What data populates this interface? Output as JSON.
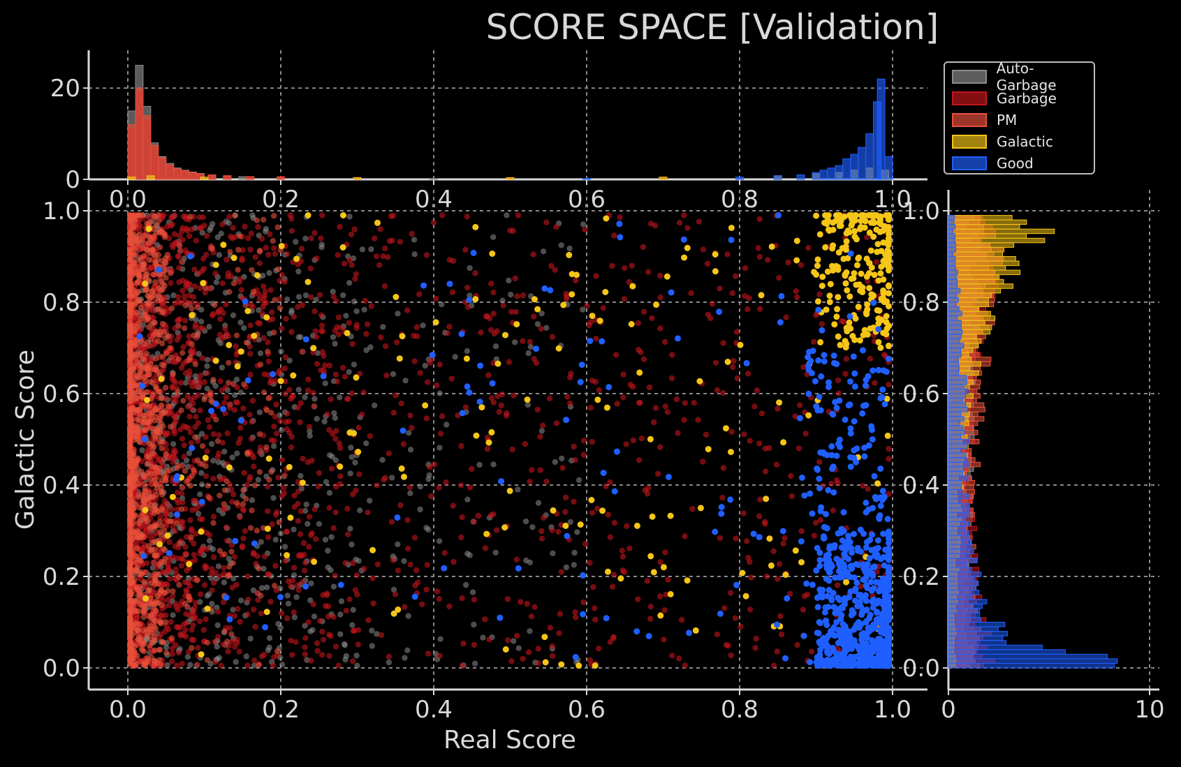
{
  "title": "SCORE SPACE [Validation]",
  "colors": {
    "background": "#000000",
    "axis": "#d9d9d9",
    "grid": "#8a8a8a",
    "Auto-Garbage": "#8c8c8c",
    "Garbage": "#c4161c",
    "PM": "#e8503a",
    "Galactic": "#f5c518",
    "Good": "#1f5fff"
  },
  "legend": {
    "placement": "top-right, beside top histogram",
    "items": [
      {
        "label": "Auto-Garbage",
        "color_key": "Auto-Garbage"
      },
      {
        "label": "Garbage",
        "color_key": "Garbage"
      },
      {
        "label": "PM",
        "color_key": "PM"
      },
      {
        "label": "Galactic",
        "color_key": "Galactic"
      },
      {
        "label": "Good",
        "color_key": "Good"
      }
    ]
  },
  "chart_data": [
    {
      "type": "scatter",
      "name": "main",
      "xlabel": "Real Score",
      "ylabel": "Galactic Score",
      "xlim": [
        0,
        1
      ],
      "ylim": [
        0,
        1
      ],
      "xticks": [
        "0.0",
        "0.2",
        "0.4",
        "0.6",
        "0.8",
        "1.0"
      ],
      "yticks": [
        "0.0",
        "0.2",
        "0.4",
        "0.6",
        "0.8",
        "1.0"
      ],
      "grid": true,
      "series": [
        {
          "name": "Auto-Garbage",
          "color_key": "Auto-Garbage",
          "clusters": [
            {
              "x": [
                0.0,
                0.3
              ],
              "y": [
                0.0,
                1.0
              ],
              "n": 420
            },
            {
              "x": [
                0.0,
                0.6
              ],
              "y": [
                0.0,
                1.0
              ],
              "n": 260
            }
          ]
        },
        {
          "name": "Garbage",
          "color_key": "Garbage",
          "clusters": [
            {
              "x": [
                0.0,
                0.1
              ],
              "y": [
                0.0,
                1.0
              ],
              "n": 700
            },
            {
              "x": [
                0.0,
                0.3
              ],
              "y": [
                0.0,
                1.0
              ],
              "n": 650
            },
            {
              "x": [
                0.0,
                1.0
              ],
              "y": [
                0.0,
                1.0
              ],
              "n": 900
            }
          ]
        },
        {
          "name": "PM",
          "color_key": "PM",
          "clusters": [
            {
              "x": [
                0.0,
                0.05
              ],
              "y": [
                0.0,
                1.0
              ],
              "n": 900
            },
            {
              "x": [
                0.0,
                0.2
              ],
              "y": [
                0.0,
                1.0
              ],
              "n": 300
            }
          ]
        },
        {
          "name": "Galactic",
          "color_key": "Galactic",
          "clusters": [
            {
              "x": [
                0.9,
                1.0
              ],
              "y": [
                0.7,
                1.0
              ],
              "n": 220
            },
            {
              "x": [
                0.0,
                1.0
              ],
              "y": [
                0.0,
                1.0
              ],
              "n": 170
            }
          ]
        },
        {
          "name": "Good",
          "color_key": "Good",
          "clusters": [
            {
              "x": [
                0.9,
                1.0
              ],
              "y": [
                0.0,
                0.3
              ],
              "n": 500
            },
            {
              "x": [
                0.88,
                1.0
              ],
              "y": [
                0.0,
                0.7
              ],
              "n": 180
            },
            {
              "x": [
                0.0,
                1.0
              ],
              "y": [
                0.0,
                1.0
              ],
              "n": 110
            }
          ]
        }
      ]
    },
    {
      "type": "histogram",
      "name": "top-marginal",
      "orientation": "vertical",
      "xlim": [
        0,
        1
      ],
      "ylim": [
        0,
        26
      ],
      "xticks": [
        "0.0",
        "0.2",
        "0.4",
        "0.6",
        "0.8",
        "1.0"
      ],
      "yticks": [
        "0",
        "20"
      ],
      "grid": true,
      "series": [
        {
          "name": "Auto-Garbage",
          "color_key": "Auto-Garbage",
          "bins": [
            [
              0.005,
              15
            ],
            [
              0.015,
              25
            ],
            [
              0.025,
              16
            ],
            [
              0.035,
              8
            ],
            [
              0.045,
              5
            ],
            [
              0.055,
              3.5
            ],
            [
              0.065,
              2.5
            ],
            [
              0.075,
              2
            ],
            [
              0.085,
              1.6
            ],
            [
              0.095,
              1.3
            ],
            [
              0.11,
              1
            ],
            [
              0.13,
              0.8
            ],
            [
              0.15,
              0.6
            ],
            [
              0.2,
              0.5
            ],
            [
              0.3,
              0.3
            ],
            [
              0.4,
              0.2
            ]
          ]
        },
        {
          "name": "Garbage",
          "color_key": "Garbage",
          "bins": [
            [
              0.005,
              11
            ],
            [
              0.015,
              19
            ],
            [
              0.025,
              13
            ],
            [
              0.035,
              7
            ],
            [
              0.045,
              4.5
            ],
            [
              0.055,
              3
            ],
            [
              0.065,
              2.2
            ],
            [
              0.075,
              1.8
            ],
            [
              0.085,
              1.4
            ],
            [
              0.095,
              1.2
            ],
            [
              0.11,
              1
            ],
            [
              0.13,
              0.8
            ],
            [
              0.16,
              0.6
            ],
            [
              0.2,
              0.6
            ],
            [
              0.3,
              0.4
            ],
            [
              0.5,
              0.3
            ],
            [
              0.7,
              0.3
            ],
            [
              0.9,
              0.3
            ]
          ]
        },
        {
          "name": "PM",
          "color_key": "PM",
          "bins": [
            [
              0.005,
              12
            ],
            [
              0.015,
              20
            ],
            [
              0.025,
              14
            ],
            [
              0.035,
              7.5
            ],
            [
              0.045,
              4.8
            ],
            [
              0.055,
              3.2
            ],
            [
              0.065,
              2.3
            ],
            [
              0.075,
              1.9
            ],
            [
              0.085,
              1.5
            ],
            [
              0.095,
              1.2
            ],
            [
              0.11,
              1
            ],
            [
              0.13,
              0.8
            ],
            [
              0.16,
              0.6
            ],
            [
              0.2,
              0.5
            ]
          ]
        },
        {
          "name": "Galactic",
          "color_key": "Galactic",
          "bins": [
            [
              0.005,
              0.5
            ],
            [
              0.03,
              0.8
            ],
            [
              0.1,
              0.5
            ],
            [
              0.3,
              0.4
            ],
            [
              0.5,
              0.4
            ],
            [
              0.7,
              0.5
            ],
            [
              0.85,
              0.8
            ],
            [
              0.9,
              1.2
            ],
            [
              0.93,
              1.5
            ],
            [
              0.95,
              2
            ],
            [
              0.97,
              2.5
            ],
            [
              0.99,
              2
            ]
          ]
        },
        {
          "name": "Good",
          "color_key": "Good",
          "bins": [
            [
              0.6,
              0.2
            ],
            [
              0.8,
              0.5
            ],
            [
              0.85,
              0.8
            ],
            [
              0.88,
              1
            ],
            [
              0.9,
              1.5
            ],
            [
              0.91,
              2
            ],
            [
              0.92,
              2.5
            ],
            [
              0.93,
              3
            ],
            [
              0.94,
              4.5
            ],
            [
              0.95,
              5.5
            ],
            [
              0.96,
              7
            ],
            [
              0.97,
              10
            ],
            [
              0.98,
              17
            ],
            [
              0.985,
              22
            ],
            [
              0.995,
              5
            ]
          ]
        }
      ]
    },
    {
      "type": "histogram",
      "name": "right-marginal",
      "orientation": "horizontal",
      "xlim": [
        0,
        10
      ],
      "ylim": [
        0,
        1
      ],
      "xticks": [
        "0",
        "10"
      ],
      "yticks": [
        "0.0",
        "0.2",
        "0.4",
        "0.6",
        "0.8",
        "1.0"
      ],
      "grid": true,
      "series": [
        {
          "name": "Auto-Garbage",
          "color_key": "Auto-Garbage",
          "bins": [
            [
              0.02,
              1.2
            ],
            [
              0.1,
              1
            ],
            [
              0.2,
              0.9
            ],
            [
              0.3,
              0.9
            ],
            [
              0.4,
              1
            ],
            [
              0.5,
              1
            ],
            [
              0.6,
              1.1
            ],
            [
              0.7,
              1.2
            ],
            [
              0.8,
              1.3
            ],
            [
              0.9,
              1.5
            ],
            [
              0.97,
              1.2
            ]
          ]
        },
        {
          "name": "Garbage",
          "color_key": "Garbage",
          "bins": [
            [
              0.02,
              2
            ],
            [
              0.1,
              1.6
            ],
            [
              0.2,
              1.3
            ],
            [
              0.3,
              1.1
            ],
            [
              0.4,
              1
            ],
            [
              0.5,
              1
            ],
            [
              0.6,
              1
            ],
            [
              0.7,
              1.3
            ],
            [
              0.8,
              1.8
            ],
            [
              0.9,
              2.4
            ],
            [
              0.97,
              2
            ]
          ]
        },
        {
          "name": "PM",
          "color_key": "PM",
          "bins": [
            [
              0.02,
              1.5
            ],
            [
              0.1,
              1.2
            ],
            [
              0.2,
              1.1
            ],
            [
              0.3,
              1.1
            ],
            [
              0.4,
              1.2
            ],
            [
              0.5,
              1.3
            ],
            [
              0.6,
              1.5
            ],
            [
              0.7,
              1.7
            ],
            [
              0.8,
              1.9
            ],
            [
              0.9,
              2.2
            ],
            [
              0.97,
              1.8
            ]
          ]
        },
        {
          "name": "Galactic",
          "color_key": "Galactic",
          "bins": [
            [
              0.05,
              0.3
            ],
            [
              0.2,
              0.4
            ],
            [
              0.4,
              0.6
            ],
            [
              0.6,
              1
            ],
            [
              0.7,
              1.4
            ],
            [
              0.8,
              2.2
            ],
            [
              0.85,
              2.6
            ],
            [
              0.9,
              3.2
            ],
            [
              0.93,
              4
            ],
            [
              0.95,
              4.9
            ],
            [
              0.97,
              3.2
            ]
          ]
        },
        {
          "name": "Good",
          "color_key": "Good",
          "bins": [
            [
              0.01,
              9.8
            ],
            [
              0.02,
              7.5
            ],
            [
              0.03,
              5.5
            ],
            [
              0.04,
              4.1
            ],
            [
              0.05,
              3.5
            ],
            [
              0.07,
              3
            ],
            [
              0.1,
              2.3
            ],
            [
              0.13,
              2
            ],
            [
              0.16,
              1.6
            ],
            [
              0.2,
              1.3
            ],
            [
              0.25,
              1.1
            ],
            [
              0.3,
              1
            ],
            [
              0.4,
              0.8
            ],
            [
              0.5,
              0.8
            ],
            [
              0.6,
              0.8
            ],
            [
              0.7,
              0.6
            ],
            [
              0.8,
              0.5
            ],
            [
              0.9,
              0.3
            ]
          ]
        }
      ]
    }
  ]
}
